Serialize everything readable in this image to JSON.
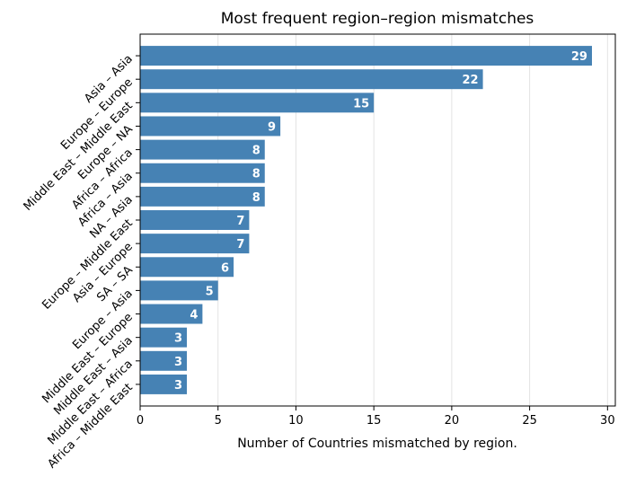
{
  "chart_data": {
    "type": "bar",
    "orientation": "horizontal",
    "title": "Most frequent region–region mismatches",
    "xlabel": "Number of Countries mismatched by region.",
    "ylabel": "",
    "xlim": [
      0,
      30.5
    ],
    "xticks": [
      0,
      5,
      10,
      15,
      20,
      25,
      30
    ],
    "grid": "vertical",
    "legend": "none",
    "bar_color": "#4682b4",
    "categories": [
      "Asia – Asia",
      "Europe – Europe",
      "Middle East – Middle East",
      "Europe – NA",
      "Africa – Africa",
      "Africa – Asia",
      "NA – Asia",
      "Europe – Middle East",
      "Asia – Europe",
      "SA – SA",
      "Europe – Asia",
      "Middle East – Europe",
      "Middle East – Asia",
      "Middle East – Africa",
      "Africa – Middle East"
    ],
    "values": [
      29,
      22,
      15,
      9,
      8,
      8,
      8,
      7,
      7,
      6,
      5,
      4,
      3,
      3,
      3
    ]
  }
}
